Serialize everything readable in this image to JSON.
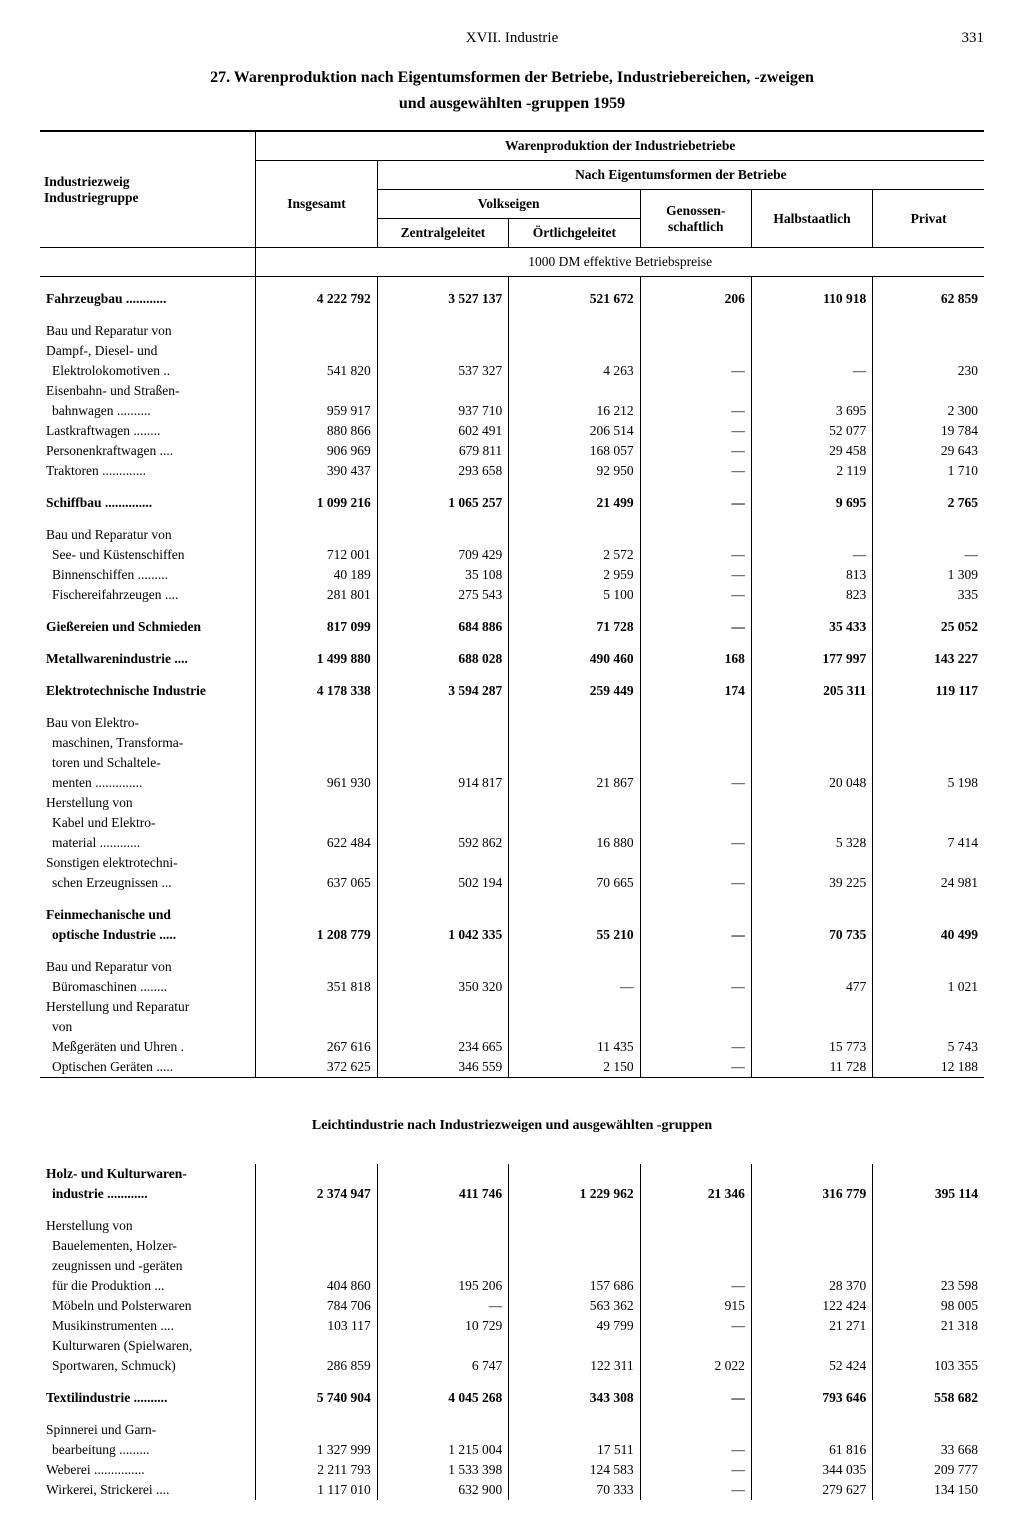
{
  "page": {
    "chapter": "XVII. Industrie",
    "number": "331"
  },
  "title_line1": "27. Warenproduktion nach Eigentumsformen der Betriebe, Industriebereichen, -zweigen",
  "title_line2": "und ausgewählten -gruppen 1959",
  "headers": {
    "rowlabel1": "Industriezweig",
    "rowlabel2": "Industriegruppe",
    "top": "Warenproduktion der Industriebetriebe",
    "insgesamt": "Insgesamt",
    "eigentums": "Nach Eigentumsformen der Betriebe",
    "volkseigen": "Volkseigen",
    "zentral": "Zentralgeleitet",
    "ortlich": "Örtlichgeleitet",
    "genossen": "Genossen-\nschaftlich",
    "halb": "Halbstaatlich",
    "privat": "Privat",
    "unit": "1000 DM effektive Betriebspreise"
  },
  "section2_title": "Leichtindustrie nach Industriezweigen und ausgewählten -gruppen",
  "rows": [
    {
      "bold": true,
      "label": "Fahrzeugbau ............",
      "c": [
        "4 222 792",
        "3 527 137",
        "521 672",
        "206",
        "110 918",
        "62 859"
      ]
    },
    {
      "gap": true
    },
    {
      "label": "Bau und Reparatur von",
      "c": [
        "",
        "",
        "",
        "",
        "",
        ""
      ]
    },
    {
      "label": "Dampf-, Diesel- und",
      "c": [
        "",
        "",
        "",
        "",
        "",
        ""
      ]
    },
    {
      "indent": 1,
      "label": "Elektrolokomotiven ..",
      "c": [
        "541 820",
        "537 327",
        "4 263",
        "—",
        "—",
        "230"
      ]
    },
    {
      "label": "Eisenbahn- und Straßen-",
      "c": [
        "",
        "",
        "",
        "",
        "",
        ""
      ]
    },
    {
      "indent": 1,
      "label": "bahnwagen ..........",
      "c": [
        "959 917",
        "937 710",
        "16 212",
        "—",
        "3 695",
        "2 300"
      ]
    },
    {
      "label": "Lastkraftwagen ........",
      "c": [
        "880 866",
        "602 491",
        "206 514",
        "—",
        "52 077",
        "19 784"
      ]
    },
    {
      "label": "Personenkraftwagen ....",
      "c": [
        "906 969",
        "679 811",
        "168 057",
        "—",
        "29 458",
        "29 643"
      ]
    },
    {
      "label": "Traktoren .............",
      "c": [
        "390 437",
        "293 658",
        "92 950",
        "—",
        "2 119",
        "1 710"
      ]
    },
    {
      "gap": true
    },
    {
      "bold": true,
      "label": "Schiffbau ..............",
      "c": [
        "1 099 216",
        "1 065 257",
        "21 499",
        "—",
        "9 695",
        "2 765"
      ]
    },
    {
      "gap": true
    },
    {
      "label": "Bau und Reparatur von",
      "c": [
        "",
        "",
        "",
        "",
        "",
        ""
      ]
    },
    {
      "indent": 1,
      "label": "See- und Küstenschiffen",
      "c": [
        "712 001",
        "709 429",
        "2 572",
        "—",
        "—",
        "—"
      ]
    },
    {
      "indent": 1,
      "label": "Binnenschiffen .........",
      "c": [
        "40 189",
        "35 108",
        "2 959",
        "—",
        "813",
        "1 309"
      ]
    },
    {
      "indent": 1,
      "label": "Fischereifahrzeugen ....",
      "c": [
        "281 801",
        "275 543",
        "5 100",
        "—",
        "823",
        "335"
      ]
    },
    {
      "gap": true
    },
    {
      "bold": true,
      "label": "Gießereien und Schmieden",
      "c": [
        "817 099",
        "684 886",
        "71 728",
        "—",
        "35 433",
        "25 052"
      ]
    },
    {
      "gap": true
    },
    {
      "bold": true,
      "label": "Metallwarenindustrie ....",
      "c": [
        "1 499 880",
        "688 028",
        "490 460",
        "168",
        "177 997",
        "143 227"
      ]
    },
    {
      "gap": true
    },
    {
      "bold": true,
      "label": "Elektrotechnische Industrie",
      "c": [
        "4 178 338",
        "3 594 287",
        "259 449",
        "174",
        "205 311",
        "119 117"
      ]
    },
    {
      "gap": true
    },
    {
      "label": "Bau von Elektro-",
      "c": [
        "",
        "",
        "",
        "",
        "",
        ""
      ]
    },
    {
      "indent": 1,
      "label": "maschinen, Transforma-",
      "c": [
        "",
        "",
        "",
        "",
        "",
        ""
      ]
    },
    {
      "indent": 1,
      "label": "toren und Schaltele-",
      "c": [
        "",
        "",
        "",
        "",
        "",
        ""
      ]
    },
    {
      "indent": 1,
      "label": "menten ..............",
      "c": [
        "961 930",
        "914 817",
        "21 867",
        "—",
        "20 048",
        "5 198"
      ]
    },
    {
      "label": "Herstellung von",
      "c": [
        "",
        "",
        "",
        "",
        "",
        ""
      ]
    },
    {
      "indent": 1,
      "label": "Kabel und Elektro-",
      "c": [
        "",
        "",
        "",
        "",
        "",
        ""
      ]
    },
    {
      "indent": 1,
      "label": "material ............",
      "c": [
        "622 484",
        "592 862",
        "16 880",
        "—",
        "5 328",
        "7 414"
      ]
    },
    {
      "label": "Sonstigen elektrotechni-",
      "c": [
        "",
        "",
        "",
        "",
        "",
        ""
      ]
    },
    {
      "indent": 1,
      "label": "schen Erzeugnissen ...",
      "c": [
        "637 065",
        "502 194",
        "70 665",
        "—",
        "39 225",
        "24 981"
      ]
    },
    {
      "gap": true
    },
    {
      "bold": true,
      "label": "Feinmechanische und",
      "c": [
        "",
        "",
        "",
        "",
        "",
        ""
      ]
    },
    {
      "bold": true,
      "indent": 1,
      "label": "optische Industrie .....",
      "c": [
        "1 208 779",
        "1 042 335",
        "55 210",
        "—",
        "70 735",
        "40 499"
      ]
    },
    {
      "gap": true
    },
    {
      "label": "Bau und Reparatur von",
      "c": [
        "",
        "",
        "",
        "",
        "",
        ""
      ]
    },
    {
      "indent": 1,
      "label": "Büromaschinen ........",
      "c": [
        "351 818",
        "350 320",
        "—",
        "—",
        "477",
        "1 021"
      ]
    },
    {
      "label": "Herstellung und Reparatur",
      "c": [
        "",
        "",
        "",
        "",
        "",
        ""
      ]
    },
    {
      "indent": 1,
      "label": "von",
      "c": [
        "",
        "",
        "",
        "",
        "",
        ""
      ]
    },
    {
      "indent": 1,
      "label": "Meßgeräten und Uhren .",
      "c": [
        "267 616",
        "234 665",
        "11 435",
        "—",
        "15 773",
        "5 743"
      ]
    },
    {
      "indent": 1,
      "label": "Optischen Geräten .....",
      "c": [
        "372 625",
        "346 559",
        "2 150",
        "—",
        "11 728",
        "12 188"
      ]
    }
  ],
  "rows2": [
    {
      "bold": true,
      "label": "Holz- und Kulturwaren-",
      "c": [
        "",
        "",
        "",
        "",
        "",
        ""
      ]
    },
    {
      "bold": true,
      "indent": 1,
      "label": "industrie ............",
      "c": [
        "2 374 947",
        "411 746",
        "1 229 962",
        "21 346",
        "316 779",
        "395 114"
      ]
    },
    {
      "gap": true
    },
    {
      "label": "Herstellung von",
      "c": [
        "",
        "",
        "",
        "",
        "",
        ""
      ]
    },
    {
      "indent": 1,
      "label": "Bauelementen, Holzer-",
      "c": [
        "",
        "",
        "",
        "",
        "",
        ""
      ]
    },
    {
      "indent": 1,
      "label": "zeugnissen und -geräten",
      "c": [
        "",
        "",
        "",
        "",
        "",
        ""
      ]
    },
    {
      "indent": 1,
      "label": "für die Produktion ...",
      "c": [
        "404 860",
        "195 206",
        "157 686",
        "—",
        "28 370",
        "23 598"
      ]
    },
    {
      "indent": 1,
      "label": "Möbeln und Polsterwaren",
      "c": [
        "784 706",
        "—",
        "563 362",
        "915",
        "122 424",
        "98 005"
      ]
    },
    {
      "indent": 1,
      "label": "Musikinstrumenten ....",
      "c": [
        "103 117",
        "10 729",
        "49 799",
        "—",
        "21 271",
        "21 318"
      ]
    },
    {
      "indent": 1,
      "label": "Kulturwaren (Spielwaren,",
      "c": [
        "",
        "",
        "",
        "",
        "",
        ""
      ]
    },
    {
      "indent": 1,
      "label": "Sportwaren, Schmuck)",
      "c": [
        "286 859",
        "6 747",
        "122 311",
        "2 022",
        "52 424",
        "103 355"
      ]
    },
    {
      "gap": true
    },
    {
      "bold": true,
      "label": "Textilindustrie ..........",
      "c": [
        "5 740 904",
        "4 045 268",
        "343 308",
        "—",
        "793 646",
        "558 682"
      ]
    },
    {
      "gap": true
    },
    {
      "label": "Spinnerei und Garn-",
      "c": [
        "",
        "",
        "",
        "",
        "",
        ""
      ]
    },
    {
      "indent": 1,
      "label": "bearbeitung .........",
      "c": [
        "1 327 999",
        "1 215 004",
        "17 511",
        "—",
        "61 816",
        "33 668"
      ]
    },
    {
      "label": "Weberei ...............",
      "c": [
        "2 211 793",
        "1 533 398",
        "124 583",
        "—",
        "344 035",
        "209 777"
      ]
    },
    {
      "label": "Wirkerei, Strickerei ....",
      "c": [
        "1 117 010",
        "632 900",
        "70 333",
        "—",
        "279 627",
        "134 150"
      ]
    }
  ]
}
